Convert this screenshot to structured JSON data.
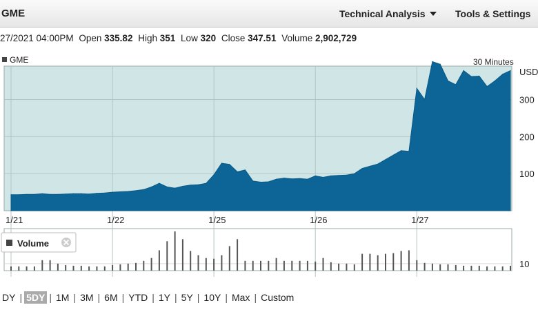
{
  "header": {
    "symbol": "GME",
    "technical_analysis": "Technical Analysis",
    "tools_settings": "Tools & Settings"
  },
  "quote": {
    "datetime": "27/2021 04:00PM",
    "open_label": "Open",
    "open": "335.82",
    "high_label": "High",
    "high": "351",
    "low_label": "Low",
    "low": "320",
    "close_label": "Close",
    "close": "347.51",
    "volume_label": "Volume",
    "volume": "2,902,729"
  },
  "chart_data": [
    {
      "type": "area",
      "series": [
        {
          "name": "GME"
        }
      ],
      "interval_label": "30 Minutes",
      "unit_label": "USD",
      "yticks": [
        100,
        200,
        300
      ],
      "ylim": [
        0,
        390
      ],
      "x_tick_labels": [
        "1/21",
        "1/22",
        "1/25",
        "1/26",
        "1/27"
      ],
      "x_tick_index": [
        0,
        13,
        26,
        39,
        52
      ],
      "values": [
        43,
        43,
        44,
        44,
        46,
        44,
        44,
        45,
        46,
        46,
        45,
        47,
        48,
        50,
        51,
        52,
        54,
        57,
        64,
        74,
        64,
        61,
        66,
        69,
        70,
        74,
        97,
        128,
        125,
        105,
        110,
        80,
        77,
        78,
        85,
        88,
        86,
        87,
        85,
        94,
        90,
        94,
        95,
        96,
        100,
        114,
        120,
        126,
        138,
        150,
        162,
        160,
        330,
        300,
        402,
        395,
        350,
        340,
        378,
        362,
        363,
        335,
        350,
        368,
        378
      ],
      "grid": true,
      "color": "#0c6596",
      "background": "#d0e6e6"
    },
    {
      "type": "bar",
      "series": [
        {
          "name": "Volume"
        }
      ],
      "yticks": [
        10
      ],
      "ylim": [
        0,
        60
      ],
      "values": [
        6,
        6,
        6,
        6,
        15,
        15,
        10,
        8,
        7,
        7,
        6,
        6,
        6,
        8,
        9,
        10,
        11,
        14,
        18,
        29,
        42,
        56,
        45,
        28,
        22,
        18,
        17,
        22,
        35,
        45,
        14,
        14,
        14,
        14,
        18,
        14,
        14,
        14,
        14,
        13,
        18,
        12,
        10,
        10,
        9,
        24,
        24,
        22,
        24,
        25,
        28,
        29,
        15,
        11,
        10,
        9,
        9,
        8,
        7,
        7,
        7,
        6,
        6,
        6,
        7
      ],
      "grid": true,
      "color": "#555555"
    }
  ],
  "range": {
    "options": [
      "DY",
      "5DY",
      "1M",
      "3M",
      "6M",
      "YTD",
      "1Y",
      "5Y",
      "10Y",
      "Max",
      "Custom"
    ],
    "selected": "5DY"
  },
  "colors": {
    "area": "#0c6596",
    "plot_bg": "#d0e6e6",
    "grid": "#b4c4c4",
    "bars": "#555555"
  },
  "icons": {
    "legend_swatch": "square-icon",
    "close": "close-circle-icon",
    "caret": "chevron-down-icon"
  }
}
